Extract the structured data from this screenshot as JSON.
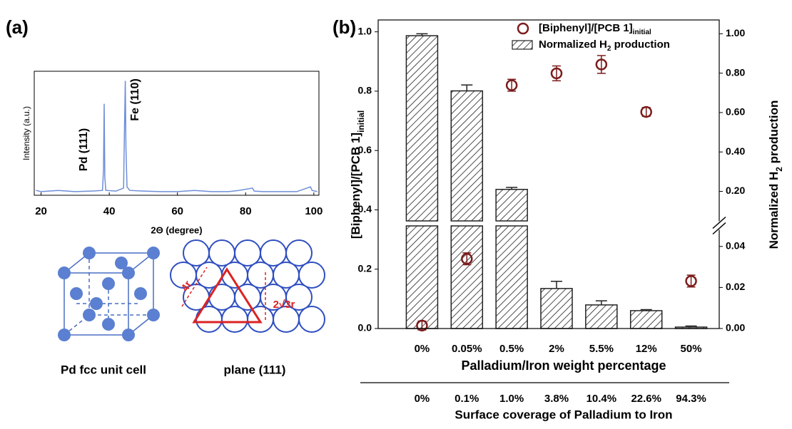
{
  "panel_labels": [
    "(a)",
    "(b)"
  ],
  "diagrams": {
    "unit_cell": {
      "caption": "Pd fcc unit cell"
    },
    "plane": {
      "caption": "plane (111)",
      "labels": [
        "4r",
        "2√3r"
      ]
    }
  },
  "chart_data": [
    {
      "type": "line",
      "xlabel": "2Θ (degree)",
      "ylabel": "Intensity (a.u.)",
      "annotations": [
        "Pd (111)",
        "Fe (110)"
      ],
      "x": [
        18.5,
        20,
        25,
        30,
        35,
        38,
        38.3,
        38.5,
        38.7,
        39,
        42,
        44.2,
        44.5,
        44.7,
        44.9,
        45.2,
        46,
        50,
        55,
        60,
        65,
        70,
        75,
        78,
        82,
        82.5,
        85,
        90,
        95,
        99,
        99.5,
        101
      ],
      "series": [
        {
          "color": "#6f8fd8",
          "values": [
            0.04,
            0.03,
            0.04,
            0.03,
            0.035,
            0.04,
            0.2,
            0.76,
            0.15,
            0.04,
            0.035,
            0.06,
            0.6,
            0.95,
            0.4,
            0.07,
            0.04,
            0.035,
            0.03,
            0.03,
            0.04,
            0.03,
            0.03,
            0.04,
            0.06,
            0.035,
            0.03,
            0.03,
            0.03,
            0.07,
            0.04,
            0.03
          ]
        }
      ],
      "xlim": [
        18,
        101.5
      ],
      "xticks": [
        20,
        40,
        60,
        80,
        100
      ],
      "ylim": [
        0,
        1.03
      ]
    },
    {
      "type": "bar",
      "categories": [
        "0%",
        "0.05%",
        "0.5%",
        "2%",
        "5.5%",
        "12%",
        "50%"
      ],
      "categories2": [
        "0%",
        "0.1%",
        "1.0%",
        "3.8%",
        "10.4%",
        "22.6%",
        "94.3%"
      ],
      "xlabel": "Palladium/Iron weight percentage",
      "xlabel2": "Surface coverage of Palladium to Iron",
      "ylabel": "[Biphenyl]/[PCB 1]",
      "ylabel_sub": "initial",
      "y2label": "Normalized H",
      "y2label_sub": "2",
      "y2label_end": " production",
      "ylim": [
        0,
        1.04
      ],
      "yticks": [
        {
          "value": 0,
          "label": "0.0"
        },
        0.2,
        0.4,
        0.6,
        0.8,
        {
          "value": 1,
          "label": "1.0"
        }
      ],
      "y2lim": [
        0,
        1.07
      ],
      "y2_break": 0.05,
      "y2ticks": [
        {
          "value": 0,
          "label": "0.00"
        },
        0.02,
        0.04,
        {
          "value": 0.2,
          "label": "0.20"
        },
        {
          "value": 0.4,
          "label": "0.40"
        },
        {
          "value": 0.6,
          "label": "0.60"
        },
        {
          "value": 0.8,
          "label": "0.80"
        },
        {
          "value": 1,
          "label": "1.00"
        }
      ],
      "series": [
        {
          "name": "[Biphenyl]/[PCB 1]",
          "name_sub": "initial",
          "type": "scatter",
          "color": "#7b1c1c",
          "values": [
            0.01,
            0.235,
            0.82,
            0.86,
            0.89,
            0.73,
            0.16
          ],
          "errors": [
            0.015,
            0.02,
            0.02,
            0.025,
            0.03,
            0.015,
            0.02
          ]
        },
        {
          "name": "Normalized H",
          "name_sub": "2",
          "name_end": " production",
          "type": "bar",
          "axis": "y2",
          "color": "#222222",
          "values": [
            0.99,
            0.71,
            0.21,
            0.0195,
            0.0115,
            0.0087,
            0.0007
          ],
          "errors": [
            0.01,
            0.03,
            0.01,
            0.0035,
            0.002,
            0.0005,
            0.0005
          ]
        }
      ]
    }
  ]
}
